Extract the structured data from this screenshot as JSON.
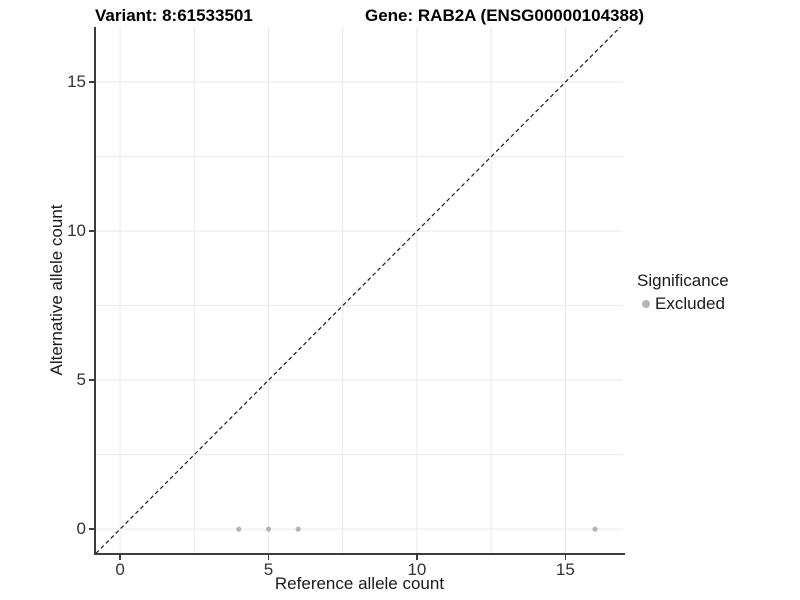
{
  "chart_data": {
    "type": "scatter",
    "titles": {
      "variant": "Variant: 8:61533501",
      "gene": "Gene: RAB2A (ENSG00000104388)"
    },
    "xlabel": "Reference allele count",
    "ylabel": "Alternative allele count",
    "x_ticks": [
      0,
      5,
      10,
      15
    ],
    "y_ticks": [
      0,
      5,
      10,
      15
    ],
    "xlim": [
      -0.81,
      16.94
    ],
    "ylim": [
      -0.8,
      16.85
    ],
    "grid": {
      "show": true,
      "interval": 2.5,
      "color": "#e9e9e9"
    },
    "identity_line": {
      "equation": "y = x",
      "style": "dashed",
      "color": "#1a1a1a"
    },
    "series": [
      {
        "name": "Excluded",
        "color": "#b5b5b5",
        "points": [
          [
            4,
            0
          ],
          [
            5,
            0
          ],
          [
            6,
            0
          ],
          [
            16,
            0
          ]
        ]
      }
    ],
    "legend": {
      "title": "Significance",
      "position": "right",
      "entries": [
        {
          "label": "Excluded",
          "color": "#b5b5b5"
        }
      ]
    }
  }
}
